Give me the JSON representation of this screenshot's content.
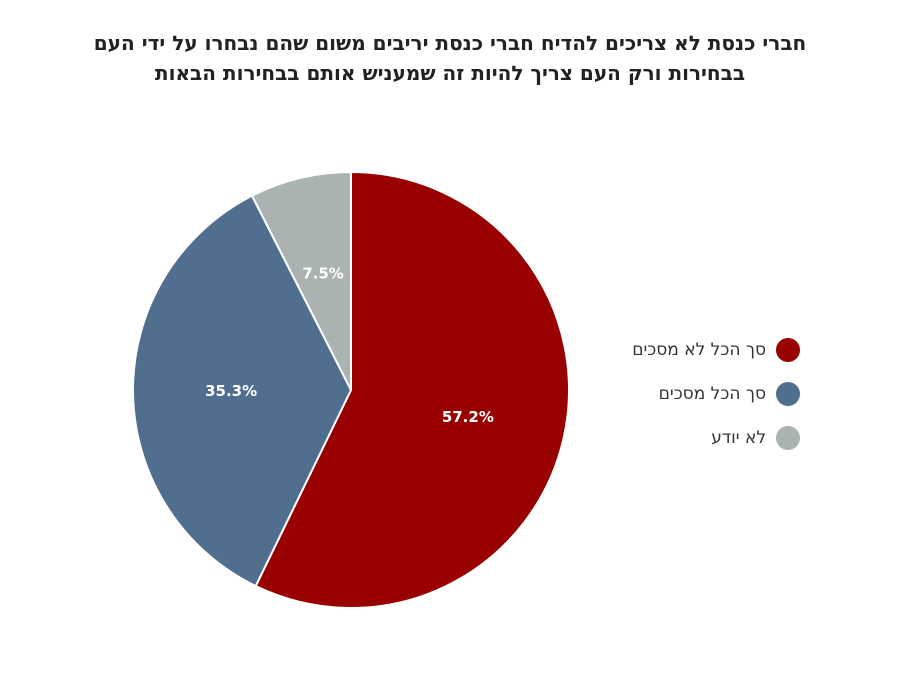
{
  "chart_data": {
    "type": "pie",
    "title": [
      "חברי כנסת לא צריכים להדיח חברי כנסת יריבים משום שהם נבחרו על ידי העם",
      "בבחירות ורק העם צריך להיות זה שמעניש אותם בבחירות הבאות"
    ],
    "categories": [
      "סך הכל לא מסכים",
      "סך הכל מסכים",
      "לא יודע"
    ],
    "values": [
      57.2,
      35.3,
      7.5
    ],
    "labels": [
      "57.2%",
      "35.3%",
      "7.5%"
    ],
    "colors": [
      "#990000",
      "#506E8E",
      "#ABB2B2"
    ],
    "legend_position": "right"
  }
}
